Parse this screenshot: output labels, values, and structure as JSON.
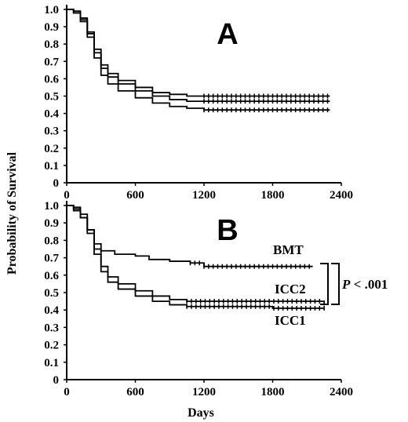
{
  "chart_data": [
    {
      "panel": "A",
      "type": "line",
      "ylabel": "Probability of Survival",
      "xlabel": "",
      "xlim": [
        0,
        2400
      ],
      "ylim": [
        0,
        1.0
      ],
      "xticks": [
        "0",
        "600",
        "1200",
        "1800",
        "2400"
      ],
      "yticks": [
        "0",
        "0.1",
        "0.2",
        "0.3",
        "0.4",
        "0.5",
        "0.6",
        "0.7",
        "0.8",
        "0.9",
        "1.0"
      ],
      "series": [
        {
          "x": [
            0,
            60,
            120,
            180,
            240,
            300,
            360,
            450,
            600,
            750,
            900,
            1050,
            1200,
            1500,
            1800,
            2100,
            2300
          ],
          "y": [
            1.0,
            0.99,
            0.95,
            0.87,
            0.77,
            0.68,
            0.63,
            0.59,
            0.55,
            0.52,
            0.51,
            0.5,
            0.5,
            0.5,
            0.5,
            0.5,
            0.5
          ]
        },
        {
          "x": [
            0,
            60,
            120,
            180,
            240,
            300,
            360,
            450,
            600,
            750,
            900,
            1050,
            1200,
            1500,
            1800,
            2100,
            2300
          ],
          "y": [
            1.0,
            0.98,
            0.94,
            0.86,
            0.75,
            0.66,
            0.61,
            0.57,
            0.53,
            0.5,
            0.48,
            0.47,
            0.47,
            0.47,
            0.47,
            0.47,
            0.47
          ]
        },
        {
          "x": [
            0,
            60,
            120,
            180,
            240,
            300,
            360,
            450,
            600,
            750,
            900,
            1050,
            1200,
            1500,
            1800,
            2100,
            2300
          ],
          "y": [
            1.0,
            0.98,
            0.93,
            0.84,
            0.72,
            0.62,
            0.57,
            0.53,
            0.49,
            0.46,
            0.44,
            0.43,
            0.42,
            0.42,
            0.42,
            0.42,
            0.42
          ]
        }
      ],
      "annotations": {
        "letter": "A"
      }
    },
    {
      "panel": "B",
      "type": "line",
      "ylabel": "",
      "xlabel": "Days",
      "xlim": [
        0,
        2400
      ],
      "ylim": [
        0,
        1.0
      ],
      "xticks": [
        "0",
        "600",
        "1200",
        "1800",
        "2400"
      ],
      "yticks": [
        "0",
        "0.1",
        "0.2",
        "0.3",
        "0.4",
        "0.5",
        "0.6",
        "0.7",
        "0.8",
        "0.9",
        "1.0"
      ],
      "series": [
        {
          "name": "BMT",
          "x": [
            0,
            60,
            120,
            180,
            240,
            300,
            420,
            600,
            720,
            900,
            1080,
            1200,
            1500,
            1800,
            2150
          ],
          "y": [
            1.0,
            0.97,
            0.93,
            0.86,
            0.78,
            0.74,
            0.72,
            0.71,
            0.69,
            0.68,
            0.67,
            0.65,
            0.65,
            0.65,
            0.65
          ]
        },
        {
          "name": "ICC2",
          "x": [
            0,
            60,
            120,
            180,
            240,
            300,
            360,
            450,
            600,
            750,
            900,
            1050,
            1200,
            1500,
            1800,
            2250
          ],
          "y": [
            1.0,
            0.99,
            0.95,
            0.86,
            0.75,
            0.65,
            0.59,
            0.55,
            0.51,
            0.48,
            0.46,
            0.45,
            0.45,
            0.45,
            0.45,
            0.44
          ]
        },
        {
          "name": "ICC1",
          "x": [
            0,
            60,
            120,
            180,
            240,
            300,
            360,
            450,
            600,
            750,
            900,
            1050,
            1200,
            1500,
            1800,
            2250
          ],
          "y": [
            1.0,
            0.98,
            0.93,
            0.84,
            0.72,
            0.62,
            0.56,
            0.52,
            0.48,
            0.45,
            0.43,
            0.42,
            0.42,
            0.42,
            0.41,
            0.41
          ]
        }
      ],
      "annotations": {
        "letter": "B",
        "pvalue_p": "P",
        "pvalue_rest": " < .001"
      }
    }
  ]
}
